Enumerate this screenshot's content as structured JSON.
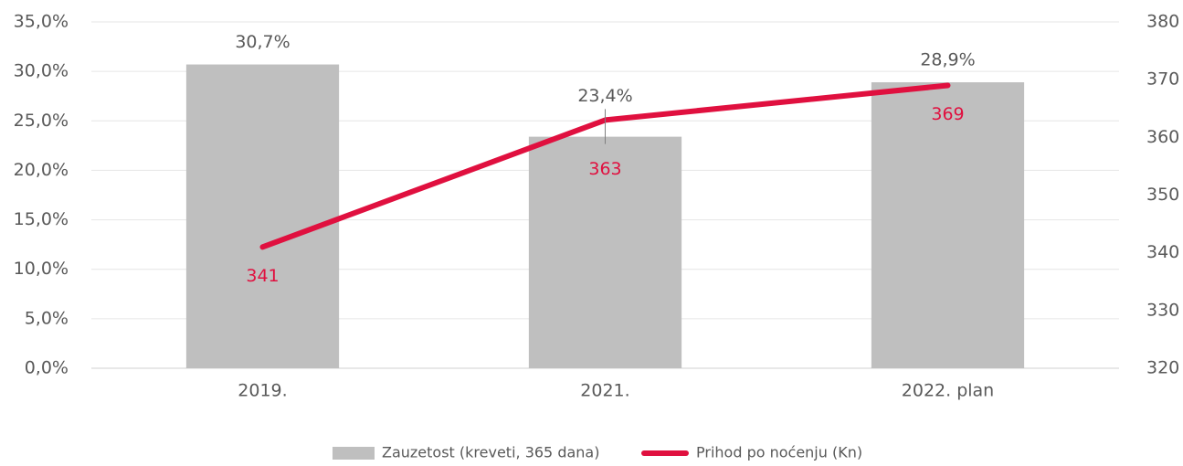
{
  "chart_data": {
    "type": "bar",
    "categories": [
      "2019.",
      "2021.",
      "2022. plan"
    ],
    "series": [
      {
        "name": "Zauzetost (kreveti, 365 dana)",
        "color": "#bfbfbf",
        "type": "bar",
        "values": [
          30.7,
          23.4,
          28.9
        ],
        "value_labels": [
          "30,7%",
          "23,4%",
          "28,9%"
        ]
      },
      {
        "name": "Prihod po noćenju (Kn)",
        "color": "#e0103f",
        "type": "line",
        "axis": "y2",
        "values": [
          341,
          363,
          369
        ]
      }
    ],
    "ylim": [
      0,
      35
    ],
    "yticks": [
      {
        "value": 0,
        "label": "0,0%"
      },
      {
        "value": 5,
        "label": "5,0%"
      },
      {
        "value": 10,
        "label": "10,0%"
      },
      {
        "value": 15,
        "label": "15,0%"
      },
      {
        "value": 20,
        "label": "20,0%"
      },
      {
        "value": 25,
        "label": "25,0%"
      },
      {
        "value": 30,
        "label": "30,0%"
      },
      {
        "value": 35,
        "label": "35,0%"
      }
    ],
    "y2lim": [
      320,
      380
    ],
    "y2ticks": [
      320,
      330,
      340,
      350,
      360,
      370,
      380
    ],
    "grid": true,
    "legend": "bottom"
  }
}
